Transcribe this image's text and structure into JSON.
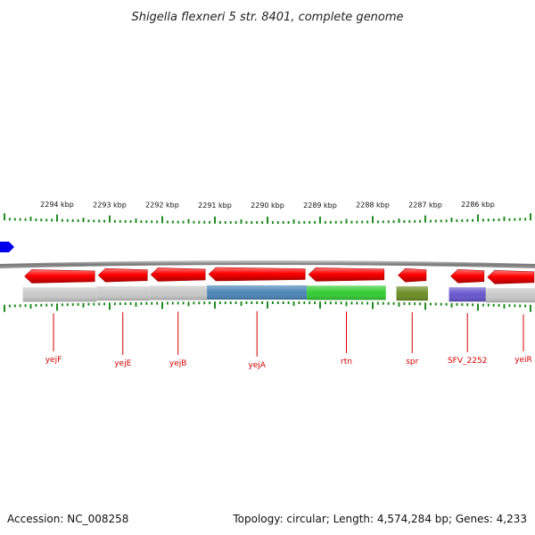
{
  "title": "Shigella flexneri 5 str. 8401, complete genome",
  "footer": {
    "accession": "Accession: NC_008258",
    "summary": "Topology: circular; Length: 4,574,284 bp; Genes: 4,233"
  },
  "colors": {
    "forward_gene": "#ff0000",
    "gene_yejA": "#4a86b8",
    "gene_rtn": "#33cc33",
    "gene_spr": "#6b8e23",
    "gene_SFV_2252": "#6655cc",
    "scale_tick": "#228b22",
    "label": "#d40000",
    "backbone": "#888888"
  },
  "ruler": {
    "unit": "kbp",
    "labels": [
      {
        "pos": 2294,
        "text": "2294 kbp"
      },
      {
        "pos": 2293,
        "text": "2293 kbp"
      },
      {
        "pos": 2292,
        "text": "2292 kbp"
      },
      {
        "pos": 2291,
        "text": "2291 kbp"
      },
      {
        "pos": 2290,
        "text": "2290 kbp"
      },
      {
        "pos": 2289,
        "text": "2289 kbp"
      },
      {
        "pos": 2288,
        "text": "2288 kbp"
      },
      {
        "pos": 2287,
        "text": "2287 kbp"
      },
      {
        "pos": 2286,
        "text": "2286 kbp"
      }
    ]
  },
  "genes": [
    {
      "name": "yejF",
      "start": 2294.65,
      "end": 2293.25,
      "strand": "-",
      "color": "#ff0000",
      "bar": "#c8c8c8"
    },
    {
      "name": "yejE",
      "start": 2293.25,
      "end": 2292.25,
      "strand": "-",
      "color": "#ff0000",
      "bar": "#c8c8c8"
    },
    {
      "name": "yejB",
      "start": 2292.25,
      "end": 2291.15,
      "strand": "-",
      "color": "#ff0000",
      "bar": "#c8c8c8"
    },
    {
      "name": "yejA",
      "start": 2291.15,
      "end": 2289.25,
      "strand": "-",
      "color": "#ff0000",
      "bar": "#4a86b8"
    },
    {
      "name": "rtn",
      "start": 2289.25,
      "end": 2287.75,
      "strand": "-",
      "color": "#ff0000",
      "bar": "#33cc33"
    },
    {
      "name": "spr",
      "start": 2287.55,
      "end": 2286.95,
      "strand": "-",
      "color": "#ff0000",
      "bar": "#6b8e23"
    },
    {
      "name": "SFV_2252",
      "start": 2286.55,
      "end": 2285.85,
      "strand": "-",
      "color": "#ff0000",
      "bar": "#6655cc"
    },
    {
      "name": "yeiR",
      "start": 2285.85,
      "end": 2284.9,
      "strand": "-",
      "color": "#ff0000",
      "bar": "#c8c8c8"
    }
  ]
}
